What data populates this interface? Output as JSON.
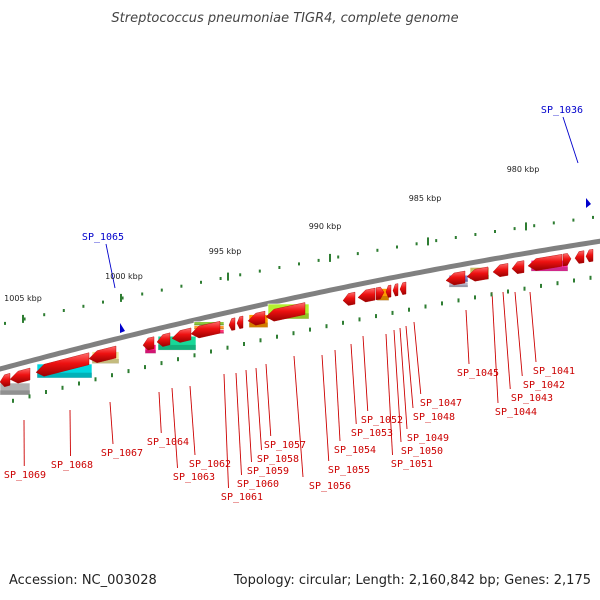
{
  "title": "Streptococcus pneumoniae TIGR4, complete genome",
  "footer": {
    "accession": "Accession: NC_003028",
    "stats": "Topology: circular; Length: 2,160,842 bp; Genes: 2,175"
  },
  "colors": {
    "backbone": "#808080",
    "tick": "#2e7d32",
    "gene": "#ee1111",
    "label_red": "#cc0000",
    "label_blue": "#0000cc"
  },
  "ruler": [
    "980 kbp",
    "985 kbp",
    "990 kbp",
    "995 kbp",
    "1000 kbp",
    "1005 kbp"
  ],
  "labels_blue": [
    "SP_1036",
    "SP_1065"
  ],
  "labels_red": [
    "SP_1041",
    "SP_1042",
    "SP_1043",
    "SP_1044",
    "SP_1045",
    "SP_1047",
    "SP_1048",
    "SP_1049",
    "SP_1050",
    "SP_1051",
    "SP_1052",
    "SP_1053",
    "SP_1054",
    "SP_1055",
    "SP_1056",
    "SP_1057",
    "SP_1058",
    "SP_1059",
    "SP_1060",
    "SP_1061",
    "SP_1062",
    "SP_1063",
    "SP_1064",
    "SP_1067",
    "SP_1068",
    "SP_1069"
  ],
  "feature_colors": [
    "#00d8e0",
    "#f0e49a",
    "#b0b0b0",
    "#18d898",
    "#ff1a8c",
    "#ff9900",
    "#b4f030",
    "#8080cc",
    "#c8b860",
    "#ff33aa"
  ]
}
